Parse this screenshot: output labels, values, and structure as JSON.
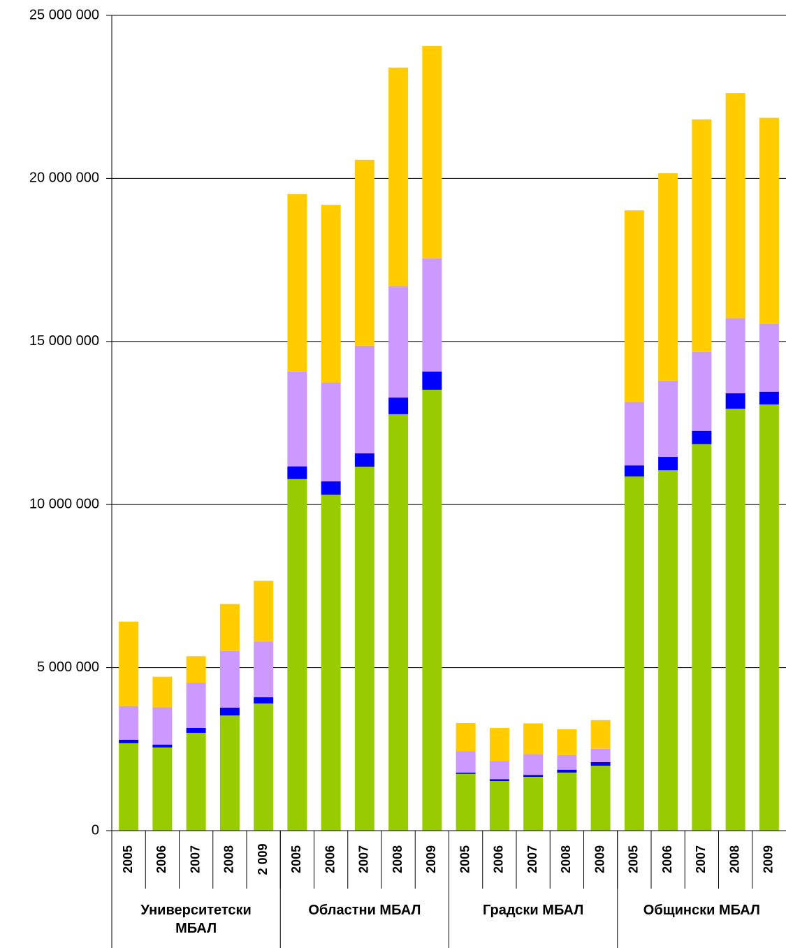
{
  "chart_data": {
    "type": "stacked_bar",
    "categories": [
      "2005",
      "2006",
      "2007",
      "2008",
      "2 009",
      "2005",
      "2006",
      "2007",
      "2008",
      "2009",
      "2005",
      "2006",
      "2007",
      "2008",
      "2009",
      "2005",
      "2006",
      "2007",
      "2008",
      "2009"
    ],
    "groups": [
      "Университетски МБАЛ",
      "Областни МБАЛ",
      "Градски МБАЛ",
      "Общински МБАЛ"
    ],
    "series": [
      {
        "color": "#99cc00",
        "values": [
          2680000,
          2550000,
          3000000,
          3530000,
          3900000,
          10780000,
          10300000,
          11160000,
          12770000,
          13520000,
          1740000,
          1520000,
          1650000,
          1780000,
          1990000,
          10860000,
          11050000,
          11850000,
          12940000,
          13070000
        ]
      },
      {
        "color": "#0000ff",
        "values": [
          110000,
          90000,
          150000,
          240000,
          190000,
          390000,
          410000,
          410000,
          510000,
          560000,
          40000,
          60000,
          60000,
          90000,
          110000,
          340000,
          410000,
          410000,
          470000,
          390000
        ]
      },
      {
        "color": "#cc99ff",
        "values": [
          1030000,
          1140000,
          1390000,
          1740000,
          1710000,
          2910000,
          3040000,
          3300000,
          3410000,
          3470000,
          660000,
          560000,
          640000,
          450000,
          410000,
          1950000,
          2340000,
          2420000,
          2310000,
          2080000
        ]
      },
      {
        "color": "#ffcc00",
        "values": [
          2590000,
          940000,
          810000,
          1440000,
          1860000,
          5440000,
          5440000,
          5700000,
          6710000,
          6510000,
          860000,
          1010000,
          940000,
          790000,
          880000,
          5870000,
          6360000,
          7130000,
          6900000,
          6320000
        ]
      }
    ],
    "ylim": [
      0,
      25000000
    ],
    "yticks": [
      0,
      {
        "value": 5000000,
        "label": "5 000 000"
      },
      {
        "value": 10000000,
        "label": "10 000 000"
      },
      {
        "value": 15000000,
        "label": "15 000 000"
      },
      {
        "value": 20000000,
        "label": "20 000 000"
      },
      {
        "value": 25000000,
        "label": "25 000 000"
      }
    ],
    "grid": true
  }
}
